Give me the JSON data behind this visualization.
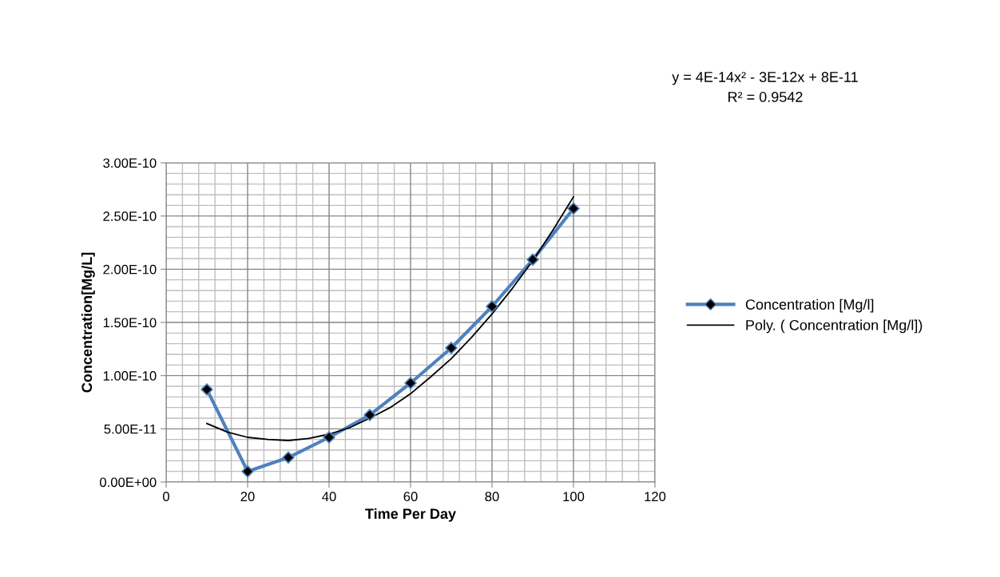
{
  "chart_data": {
    "type": "line",
    "xlabel": "Time Per Day",
    "ylabel": "Concentration[Mg/L]",
    "xlim": [
      0,
      120
    ],
    "xticks": [
      0,
      20,
      40,
      60,
      80,
      100,
      120
    ],
    "ylim": [
      0,
      3e-10
    ],
    "yticks": [
      {
        "value": 0,
        "label": "0.00E+00"
      },
      {
        "value": 5e-11,
        "label": "5.00E-11"
      },
      {
        "value": 1e-10,
        "label": "1.00E-10"
      },
      {
        "value": 1.5e-10,
        "label": "1.50E-10"
      },
      {
        "value": 2e-10,
        "label": "2.00E-10"
      },
      {
        "value": 2.5e-10,
        "label": "2.50E-10"
      },
      {
        "value": 3e-10,
        "label": "3.00E-10"
      }
    ],
    "grid": true,
    "legend": "right",
    "marker": "diamond",
    "line_style": "solid",
    "series": [
      {
        "name": "Concentration [Mg/l]",
        "color": "#4f81bd",
        "x": [
          10,
          20,
          30,
          40,
          50,
          60,
          70,
          80,
          90,
          100
        ],
        "values": [
          8.7e-11,
          1e-11,
          2.3e-11,
          4.2e-11,
          6.3e-11,
          9.3e-11,
          1.26e-10,
          1.65e-10,
          2.09e-10,
          2.57e-10
        ]
      },
      {
        "name": "Poly. ( Concentration [Mg/l])",
        "color": "#000000",
        "marker": "none",
        "x": [
          10,
          15,
          20,
          25,
          30,
          35,
          40,
          45,
          50,
          55,
          60,
          65,
          70,
          75,
          80,
          85,
          90,
          95,
          100
        ],
        "values": [
          5.5e-11,
          4.7e-11,
          4.2e-11,
          4e-11,
          3.9e-11,
          4.1e-11,
          4.5e-11,
          5.1e-11,
          6e-11,
          7e-11,
          8.3e-11,
          9.9e-11,
          1.16e-10,
          1.36e-10,
          1.58e-10,
          1.82e-10,
          2.08e-10,
          2.37e-10,
          2.68e-10
        ]
      }
    ],
    "annotations": [
      "y = 4E-14x² - 3E-12x + 8E-11",
      "R² = 0.9542"
    ]
  }
}
